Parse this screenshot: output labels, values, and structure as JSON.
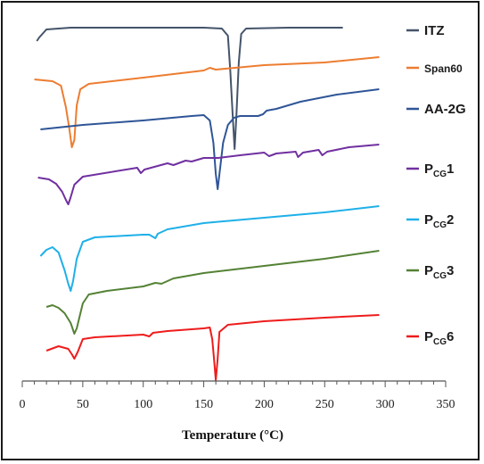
{
  "chart_data": {
    "type": "line",
    "xlabel": "Temperature (°C)",
    "ylabel": "",
    "xlim": [
      0,
      350
    ],
    "x_ticks": [
      "0",
      "50",
      "100",
      "150",
      "200",
      "250",
      "300",
      "350"
    ],
    "grid": false,
    "legend_position": "right",
    "series": [
      {
        "name": "ITZ",
        "color": "#44546a",
        "points": [
          [
            12,
            46
          ],
          [
            14,
            42
          ],
          [
            20,
            33
          ],
          [
            40,
            31
          ],
          [
            100,
            31
          ],
          [
            150,
            31
          ],
          [
            165,
            32
          ],
          [
            170,
            40
          ],
          [
            172,
            80
          ],
          [
            174,
            130
          ],
          [
            175.5,
            167
          ],
          [
            177,
            130
          ],
          [
            179,
            70
          ],
          [
            181,
            38
          ],
          [
            185,
            32
          ],
          [
            220,
            31
          ],
          [
            265,
            31
          ]
        ]
      },
      {
        "name": "Span60",
        "color": "#ed7d31",
        "points": [
          [
            10,
            89
          ],
          [
            25,
            91
          ],
          [
            32,
            96
          ],
          [
            36,
            120
          ],
          [
            39,
            145
          ],
          [
            41,
            165
          ],
          [
            43,
            157
          ],
          [
            45,
            118
          ],
          [
            48,
            100
          ],
          [
            55,
            94
          ],
          [
            100,
            87
          ],
          [
            150,
            79
          ],
          [
            155,
            76
          ],
          [
            160,
            78
          ],
          [
            200,
            73
          ],
          [
            250,
            70
          ],
          [
            295,
            64
          ]
        ]
      },
      {
        "name": "AA-2G",
        "color": "#2f5597",
        "points": [
          [
            15,
            145
          ],
          [
            50,
            140
          ],
          [
            100,
            135
          ],
          [
            140,
            130
          ],
          [
            150,
            129
          ],
          [
            155,
            135
          ],
          [
            158,
            160
          ],
          [
            160,
            195
          ],
          [
            161.5,
            212
          ],
          [
            163,
            195
          ],
          [
            166,
            160
          ],
          [
            170,
            140
          ],
          [
            175,
            132
          ],
          [
            180,
            130
          ],
          [
            195,
            130
          ],
          [
            199,
            128
          ],
          [
            202,
            124
          ],
          [
            210,
            122
          ],
          [
            230,
            114
          ],
          [
            260,
            106
          ],
          [
            295,
            100
          ]
        ]
      },
      {
        "name": "PCG1",
        "color": "#7030a0",
        "points": [
          [
            13,
            199
          ],
          [
            22,
            201
          ],
          [
            28,
            206
          ],
          [
            33,
            215
          ],
          [
            36,
            224
          ],
          [
            38,
            229
          ],
          [
            40,
            221
          ],
          [
            43,
            207
          ],
          [
            50,
            198
          ],
          [
            95,
            188
          ],
          [
            98,
            194
          ],
          [
            101,
            190
          ],
          [
            120,
            183
          ],
          [
            125,
            185
          ],
          [
            135,
            180
          ],
          [
            140,
            181
          ],
          [
            150,
            177
          ],
          [
            162,
            177
          ],
          [
            180,
            174
          ],
          [
            200,
            171
          ],
          [
            204,
            175
          ],
          [
            210,
            172
          ],
          [
            226,
            170
          ],
          [
            228,
            176
          ],
          [
            232,
            171
          ],
          [
            245,
            168
          ],
          [
            248,
            174
          ],
          [
            252,
            170
          ],
          [
            270,
            165
          ],
          [
            295,
            162
          ]
        ]
      },
      {
        "name": "PCG2",
        "color": "#1fb0e8",
        "points": [
          [
            15,
            287
          ],
          [
            20,
            280
          ],
          [
            25,
            277
          ],
          [
            30,
            283
          ],
          [
            35,
            303
          ],
          [
            38,
            318
          ],
          [
            40,
            326
          ],
          [
            42,
            315
          ],
          [
            45,
            290
          ],
          [
            50,
            271
          ],
          [
            60,
            266
          ],
          [
            100,
            263
          ],
          [
            105,
            263
          ],
          [
            110,
            267
          ],
          [
            112,
            262
          ],
          [
            120,
            257
          ],
          [
            150,
            250
          ],
          [
            200,
            244
          ],
          [
            250,
            238
          ],
          [
            295,
            231
          ]
        ]
      },
      {
        "name": "PCG3",
        "color": "#548235",
        "points": [
          [
            20,
            344
          ],
          [
            25,
            342
          ],
          [
            30,
            345
          ],
          [
            35,
            351
          ],
          [
            40,
            362
          ],
          [
            43,
            374
          ],
          [
            45,
            368
          ],
          [
            50,
            340
          ],
          [
            55,
            330
          ],
          [
            70,
            326
          ],
          [
            100,
            321
          ],
          [
            110,
            317
          ],
          [
            115,
            318
          ],
          [
            125,
            312
          ],
          [
            150,
            306
          ],
          [
            200,
            298
          ],
          [
            250,
            290
          ],
          [
            295,
            281
          ]
        ]
      },
      {
        "name": "PCG6",
        "color": "#ee1c1c",
        "points": [
          [
            20,
            393
          ],
          [
            30,
            388
          ],
          [
            38,
            391
          ],
          [
            41,
            397
          ],
          [
            43,
            402
          ],
          [
            46,
            394
          ],
          [
            50,
            380
          ],
          [
            60,
            378
          ],
          [
            100,
            375
          ],
          [
            105,
            377
          ],
          [
            108,
            373
          ],
          [
            120,
            371
          ],
          [
            150,
            368
          ],
          [
            155,
            367
          ],
          [
            157,
            380
          ],
          [
            158.5,
            402
          ],
          [
            160,
            426
          ],
          [
            161.5,
            402
          ],
          [
            163,
            372
          ],
          [
            170,
            364
          ],
          [
            200,
            360
          ],
          [
            250,
            356
          ],
          [
            295,
            353
          ]
        ]
      }
    ]
  },
  "legend": [
    {
      "main": "ITZ",
      "sub": "",
      "num": "",
      "color": "#44546a"
    },
    {
      "main": "Span60",
      "sub": "",
      "num": "",
      "color": "#ed7d31"
    },
    {
      "main": "AA-2G",
      "sub": "",
      "num": "",
      "color": "#2f5597"
    },
    {
      "main": "P",
      "sub": "CG",
      "num": "1",
      "color": "#7030a0"
    },
    {
      "main": "P",
      "sub": "CG",
      "num": "2",
      "color": "#1fb0e8"
    },
    {
      "main": "P",
      "sub": "CG",
      "num": "3",
      "color": "#548235"
    },
    {
      "main": "P",
      "sub": "CG",
      "num": "6",
      "color": "#ee1c1c"
    }
  ]
}
